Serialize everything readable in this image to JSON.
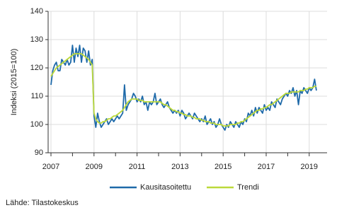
{
  "chart_data": {
    "type": "line",
    "y_label": "Indeksi (2015=100)",
    "source": "Lähde: Tilastokeskus",
    "categories": [
      "2007",
      null,
      null,
      null,
      null,
      null,
      null,
      null,
      null,
      null,
      null,
      null,
      null,
      null,
      null,
      null,
      null,
      null,
      null,
      null,
      null,
      null,
      null,
      null,
      "2009",
      null,
      null,
      null,
      null,
      null,
      null,
      null,
      null,
      null,
      null,
      null,
      null,
      null,
      null,
      null,
      null,
      null,
      null,
      null,
      null,
      null,
      null,
      null,
      "2011",
      null,
      null,
      null,
      null,
      null,
      null,
      null,
      null,
      null,
      null,
      null,
      null,
      null,
      null,
      null,
      null,
      null,
      null,
      null,
      null,
      null,
      null,
      null,
      "2013",
      null,
      null,
      null,
      null,
      null,
      null,
      null,
      null,
      null,
      null,
      null,
      null,
      null,
      null,
      null,
      null,
      null,
      null,
      null,
      null,
      null,
      null,
      null,
      "2015",
      null,
      null,
      null,
      null,
      null,
      null,
      null,
      null,
      null,
      null,
      null,
      null,
      null,
      null,
      null,
      null,
      null,
      null,
      null,
      null,
      null,
      null,
      null,
      "2017",
      null,
      null,
      null,
      null,
      null,
      null,
      null,
      null,
      null,
      null,
      null,
      null,
      null,
      null,
      null,
      null,
      null,
      null,
      null,
      null,
      null,
      null,
      null,
      "2019",
      null,
      null,
      null,
      null
    ],
    "series": [
      {
        "name": "Kausitasoitettu",
        "color": "#1f6aa9",
        "values": [
          114,
          119,
          121,
          122,
          119,
          119,
          123,
          122,
          121,
          123,
          121,
          122,
          128,
          122,
          127,
          124,
          128,
          122,
          127,
          126,
          122,
          126,
          121,
          123,
          103,
          99,
          104,
          101,
          99,
          100,
          101,
          102,
          100,
          101,
          102,
          101,
          102,
          103,
          102,
          103,
          104,
          114,
          105,
          107,
          108,
          109,
          111,
          110,
          108,
          109,
          108,
          110,
          107,
          108,
          105,
          108,
          107,
          108,
          111,
          107,
          108,
          109,
          107,
          106,
          107,
          108,
          106,
          105,
          104,
          105,
          104,
          105,
          103,
          105,
          104,
          102,
          103,
          104,
          103,
          102,
          104,
          103,
          102,
          101,
          102,
          101,
          103,
          100,
          101,
          102,
          100,
          101,
          99,
          100,
          102,
          100,
          99,
          98,
          100,
          99,
          101,
          100,
          99,
          101,
          100,
          99,
          101,
          100,
          102,
          101,
          104,
          103,
          105,
          103,
          106,
          104,
          106,
          105,
          104,
          107,
          105,
          106,
          105,
          108,
          107,
          106,
          109,
          108,
          107,
          109,
          110,
          111,
          110,
          112,
          111,
          113,
          110,
          112,
          107,
          112,
          111,
          113,
          112,
          111,
          113,
          112,
          113,
          116,
          112
        ]
      },
      {
        "name": "Trendi",
        "color": "#bcd93a",
        "values": [
          117,
          118,
          119,
          120,
          120.5,
          121,
          121.5,
          122,
          122.5,
          123,
          123.5,
          124,
          124.5,
          125,
          125,
          125,
          125,
          125,
          124.5,
          124,
          123.5,
          123,
          122,
          121,
          104,
          102,
          101,
          100.5,
          100.5,
          101,
          101,
          101.5,
          102,
          102,
          102.5,
          103,
          103,
          103.5,
          104,
          104.5,
          105,
          106,
          107,
          108,
          108.5,
          109,
          109,
          109,
          109,
          108.5,
          108.5,
          108.5,
          108,
          108,
          108,
          108,
          108,
          108,
          108,
          108,
          108,
          108,
          107.5,
          107,
          107,
          106.5,
          106,
          105.5,
          105,
          105,
          104.5,
          104.5,
          104,
          104,
          103.5,
          103.5,
          103,
          103,
          103,
          102.5,
          102.5,
          102,
          102,
          102,
          101.5,
          101.5,
          101,
          101,
          101,
          100.5,
          100.5,
          100.5,
          100,
          100,
          100,
          100,
          99.5,
          99.5,
          99.5,
          99.5,
          100,
          100,
          100,
          100,
          100.5,
          100.5,
          101,
          101,
          101.5,
          102,
          102.5,
          103,
          103.5,
          104,
          104.5,
          105,
          105,
          105.5,
          105.5,
          106,
          106,
          106.5,
          107,
          107,
          107.5,
          108,
          108.5,
          109,
          109.5,
          110,
          110.5,
          111,
          111,
          111,
          111.5,
          111.5,
          111.5,
          111.5,
          111.5,
          112,
          112,
          112,
          112.5,
          112.5,
          113,
          113,
          113,
          113.5,
          113.5
        ]
      }
    ],
    "ylim": [
      90,
      140
    ],
    "yticks": [
      90,
      100,
      110,
      120,
      130,
      140
    ],
    "grid": true
  }
}
